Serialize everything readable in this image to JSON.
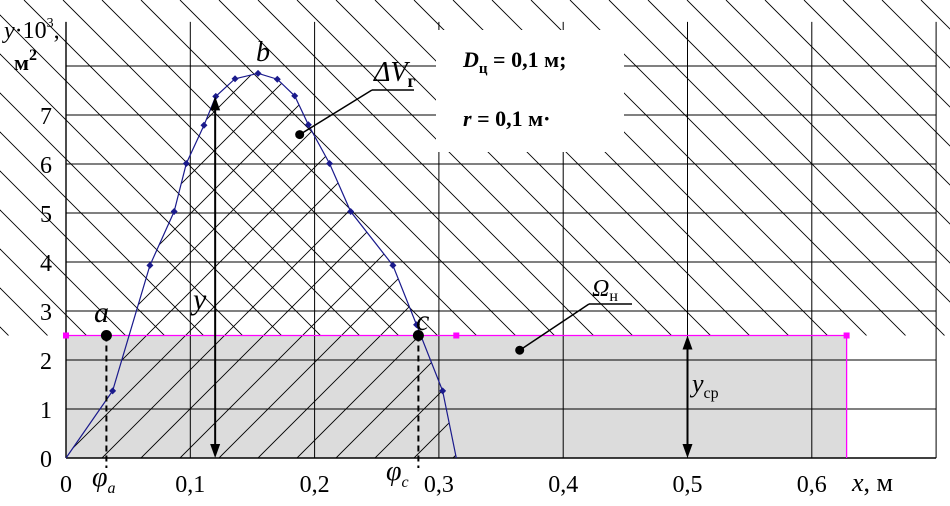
{
  "chart_data": {
    "type": "area",
    "xlim": [
      0,
      0.7
    ],
    "ylim": [
      0,
      8
    ],
    "grid": true,
    "x_ticks": [
      0,
      0.1,
      0.2,
      0.3,
      0.4,
      0.5,
      0.6
    ],
    "x_tick_labels": [
      "0",
      "0,1",
      "0,2",
      "0,3",
      "0,4",
      "0,5",
      "0,6"
    ],
    "y_ticks": [
      0,
      1,
      2,
      3,
      4,
      5,
      6,
      7
    ],
    "y_tick_labels": [
      "0",
      "1",
      "2",
      "3",
      "4",
      "5",
      "6",
      "7"
    ],
    "y_axis_label": {
      "symbol": "y",
      "dot": "·",
      "base": "10",
      "exp": "3",
      "comma": ",",
      "unit": "м",
      "unit_exp": "2"
    },
    "x_axis_label": {
      "symbol": "x",
      "unit": ", м"
    },
    "curve": {
      "x": [
        0,
        0.0375,
        0.0675,
        0.087,
        0.0968,
        0.111,
        0.1205,
        0.136,
        0.1545,
        0.17,
        0.184,
        0.195,
        0.212,
        0.229,
        0.263,
        0.282,
        0.303,
        0.314
      ],
      "y": [
        0,
        1.37,
        3.93,
        5.03,
        6.01,
        6.79,
        7.38,
        7.74,
        7.85,
        7.73,
        7.39,
        6.8,
        6.01,
        5.03,
        3.93,
        2.72,
        1.37,
        0
      ]
    },
    "mean_line": {
      "y": 2.5,
      "x_start": 0,
      "x_mid": 0.314,
      "x_end": 0.628
    },
    "points": {
      "a": {
        "x": 0.0325,
        "y": 2.5,
        "label": "a",
        "phi_label": "φ",
        "phi_sub": "a"
      },
      "b": {
        "x": 0.1545,
        "y": 7.85,
        "label": "b"
      },
      "c": {
        "x": 0.2835,
        "y": 2.5,
        "label": "c",
        "phi_label": "φ",
        "phi_sub": "c"
      }
    },
    "annotations": {
      "dV": {
        "text": "ΔV",
        "sub": "г",
        "target_x": 0.188,
        "target_y": 6.6
      },
      "omega": {
        "text": "Ω",
        "sub": "н",
        "target_x": 0.365,
        "target_y": 2.2
      },
      "y_arrow": {
        "text": "y",
        "x": 0.12
      },
      "ycp": {
        "text": "y",
        "sub": "ср",
        "x": 0.5
      },
      "param1": {
        "sym": "D",
        "sub": "ц",
        "rest": " = 0,1 м;"
      },
      "param2": {
        "sym": "r",
        "rest": " = 0,1 м·"
      }
    },
    "colors": {
      "curve": "#1a1a8c",
      "mean_line": "#ff00ff",
      "fill": "#dcdcdc",
      "hatch": "#000000",
      "grid": "#000000"
    }
  }
}
